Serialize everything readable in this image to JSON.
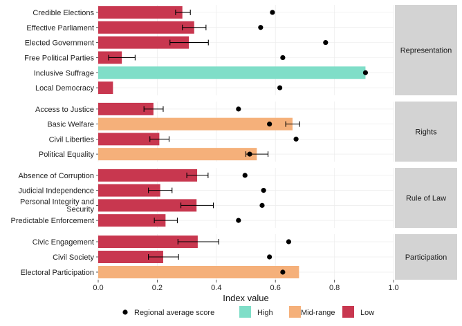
{
  "chart_data": {
    "type": "bar",
    "orientation": "horizontal",
    "xlabel": "Index value",
    "xlim": [
      0,
      1.0
    ],
    "xticks": [
      "0.0",
      "0.2",
      "0.4",
      "0.6",
      "0.8",
      "1.0"
    ],
    "grid": true,
    "legend_position": "bottom",
    "colors": {
      "High": "#7fdec8",
      "Mid-range": "#f5b07a",
      "Low": "#c8374f",
      "regional_point": "#000000"
    },
    "legend": {
      "point_label": "Regional average score",
      "fill_entries": [
        {
          "label": "High",
          "color": "#7fdec8"
        },
        {
          "label": "Mid-range",
          "color": "#f5b07a"
        },
        {
          "label": "Low",
          "color": "#c8374f"
        }
      ]
    },
    "panels": [
      {
        "name": "Representation",
        "rows": [
          {
            "label": "Credible Elections",
            "value": 0.285,
            "err": [
              0.262,
              0.312
            ],
            "regional": 0.59,
            "category": "Low"
          },
          {
            "label": "Effective Parliament",
            "value": 0.325,
            "err": [
              0.285,
              0.365
            ],
            "regional": 0.55,
            "category": "Low"
          },
          {
            "label": "Elected Government",
            "value": 0.307,
            "err": [
              0.243,
              0.373
            ],
            "regional": 0.77,
            "category": "Low"
          },
          {
            "label": "Free Political Parties",
            "value": 0.08,
            "err": [
              0.035,
              0.125
            ],
            "regional": 0.625,
            "category": "Low"
          },
          {
            "label": "Inclusive Suffrage",
            "value": 0.905,
            "err": null,
            "regional": 0.905,
            "category": "High"
          },
          {
            "label": "Local Democracy",
            "value": 0.05,
            "err": null,
            "regional": 0.615,
            "category": "Low"
          }
        ]
      },
      {
        "name": "Rights",
        "rows": [
          {
            "label": "Access to Justice",
            "value": 0.187,
            "err": [
              0.155,
              0.22
            ],
            "regional": 0.475,
            "category": "Low"
          },
          {
            "label": "Basic Welfare",
            "value": 0.658,
            "err": [
              0.635,
              0.682
            ],
            "regional": 0.58,
            "category": "Mid-range"
          },
          {
            "label": "Civil Liberties",
            "value": 0.207,
            "err": [
              0.175,
              0.24
            ],
            "regional": 0.67,
            "category": "Low"
          },
          {
            "label": "Political Equality",
            "value": 0.537,
            "err": [
              0.5,
              0.575
            ],
            "regional": 0.513,
            "category": "Mid-range"
          }
        ]
      },
      {
        "name": "Rule of Law",
        "rows": [
          {
            "label": "Absence of Corruption",
            "value": 0.335,
            "err": [
              0.3,
              0.372
            ],
            "regional": 0.497,
            "category": "Low"
          },
          {
            "label": "Judicial Independence",
            "value": 0.21,
            "err": [
              0.17,
              0.25
            ],
            "regional": 0.56,
            "category": "Low"
          },
          {
            "label": [
              "Personal Integrity and",
              "Security"
            ],
            "value": 0.333,
            "err": [
              0.28,
              0.39
            ],
            "regional": 0.555,
            "category": "Low"
          },
          {
            "label": "Predictable Enforcement",
            "value": 0.228,
            "err": [
              0.19,
              0.268
            ],
            "regional": 0.475,
            "category": "Low"
          }
        ]
      },
      {
        "name": "Participation",
        "rows": [
          {
            "label": "Civic Engagement",
            "value": 0.337,
            "err": [
              0.27,
              0.408
            ],
            "regional": 0.645,
            "category": "Low"
          },
          {
            "label": "Civil Society",
            "value": 0.22,
            "err": [
              0.17,
              0.272
            ],
            "regional": 0.58,
            "category": "Low"
          },
          {
            "label": "Electoral Participation",
            "value": 0.68,
            "err": null,
            "regional": 0.625,
            "category": "Mid-range"
          }
        ]
      }
    ]
  }
}
